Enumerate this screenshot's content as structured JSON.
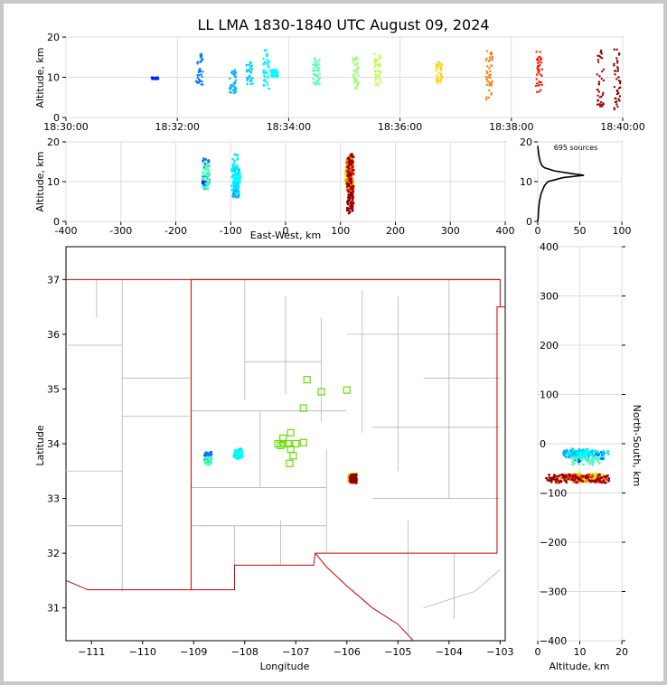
{
  "title": "LL LMA 1830-1840 UTC August 09, 2024",
  "colors": {
    "panel_border": "#000000",
    "grid": "#dddddd",
    "state_border": "#cc0000",
    "county_border": "#b4b4b4",
    "station": "#66dd00",
    "histogram": "#000000"
  },
  "time_panel": {
    "ylabel": "Altitude, km",
    "ylim": [
      0,
      20
    ],
    "yticks": [
      "0",
      "10",
      "20"
    ],
    "xticks": [
      "18:30:00",
      "18:32:00",
      "18:34:00",
      "18:36:00",
      "18:38:00",
      "18:40:00"
    ],
    "xrange_min": [
      0,
      10
    ]
  },
  "ew_panel": {
    "ylabel": "Altitude, km",
    "xlabel": "East-West, km",
    "xlim": [
      -400,
      400
    ],
    "ylim": [
      0,
      20
    ],
    "xticks": [
      "-400",
      "-300",
      "-200",
      "-100",
      "0",
      "100",
      "200",
      "300",
      "400"
    ],
    "yticks": [
      "0",
      "10",
      "20"
    ]
  },
  "hist_panel": {
    "label": "695 sources",
    "xlim": [
      0,
      100
    ],
    "ylim": [
      0,
      20
    ],
    "xticks": [
      "0",
      "50",
      "100"
    ],
    "yticks": [
      "0",
      "10",
      "20"
    ],
    "curve": [
      [
        0,
        0
      ],
      [
        0.5,
        1
      ],
      [
        1,
        3
      ],
      [
        2,
        5
      ],
      [
        3,
        6
      ],
      [
        4,
        7
      ],
      [
        6,
        8
      ],
      [
        8,
        9
      ],
      [
        12,
        10
      ],
      [
        30,
        11
      ],
      [
        55,
        11.6
      ],
      [
        35,
        12.2
      ],
      [
        20,
        12.7
      ],
      [
        8,
        13.5
      ],
      [
        5,
        14
      ],
      [
        3,
        15
      ],
      [
        2,
        16
      ],
      [
        1,
        17
      ],
      [
        0.5,
        18
      ],
      [
        0,
        19
      ]
    ]
  },
  "map_panel": {
    "xlabel": "Longitude",
    "ylabel": "Latitude",
    "xlim": [
      -111.5,
      -102.9
    ],
    "ylim": [
      30.4,
      37.6
    ],
    "xticks": [
      "−111",
      "−110",
      "−109",
      "−108",
      "−107",
      "−106",
      "−105",
      "−104",
      "−103"
    ],
    "yticks": [
      "31",
      "32",
      "33",
      "34",
      "35",
      "36",
      "37"
    ],
    "stations": [
      [
        -107.35,
        34.0
      ],
      [
        -107.25,
        34.0
      ],
      [
        -107.15,
        34.0
      ],
      [
        -107.0,
        34.0
      ],
      [
        -106.85,
        34.02
      ],
      [
        -107.1,
        34.2
      ],
      [
        -107.1,
        33.9
      ],
      [
        -107.05,
        33.78
      ],
      [
        -107.12,
        33.64
      ],
      [
        -107.25,
        34.1
      ],
      [
        -107.3,
        33.97
      ],
      [
        -106.85,
        34.65
      ],
      [
        -106.78,
        35.17
      ],
      [
        -106.5,
        34.95
      ],
      [
        -106.0,
        34.98
      ]
    ]
  },
  "ns_panel": {
    "xlabel": "Altitude, km",
    "ylabel": "North-South, km",
    "xlim": [
      0,
      20
    ],
    "ylim": [
      -400,
      400
    ],
    "xticks": [
      "0",
      "10",
      "20"
    ],
    "yticks": [
      "400",
      "300",
      "200",
      "100",
      "0",
      "−100",
      "−200",
      "−300",
      "−400"
    ]
  },
  "chart_data": {
    "type": "scatter",
    "title": "LL LMA 1830-1840 UTC August 09, 2024",
    "total_sources": 695,
    "color_scale": "time 18:30 (blue) to 18:40 (dark red)",
    "clusters": [
      {
        "time_min": 1.6,
        "x_km": -145,
        "y_km": -30,
        "alt": [
          9.5,
          10
        ]
      },
      {
        "time_min": 2.4,
        "x_km": -145,
        "y_km": -25,
        "alt": [
          8,
          16
        ]
      },
      {
        "time_min": 3.0,
        "x_km": -90,
        "y_km": -20,
        "alt": [
          6,
          12
        ]
      },
      {
        "time_min": 3.3,
        "x_km": -90,
        "y_km": -18,
        "alt": [
          8,
          14
        ]
      },
      {
        "time_min": 3.6,
        "x_km": -92,
        "y_km": -22,
        "alt": [
          7,
          17
        ]
      },
      {
        "time_min": 3.75,
        "x_km": -88,
        "y_km": -20,
        "alt": [
          10,
          12
        ]
      },
      {
        "time_min": 4.5,
        "x_km": -145,
        "y_km": -35,
        "alt": [
          8,
          15
        ]
      },
      {
        "time_min": 5.2,
        "x_km": 115,
        "y_km": -70,
        "alt": [
          7,
          15
        ]
      },
      {
        "time_min": 5.6,
        "x_km": 118,
        "y_km": -68,
        "alt": [
          8,
          16
        ]
      },
      {
        "time_min": 6.7,
        "x_km": 115,
        "y_km": -70,
        "alt": [
          8,
          14
        ]
      },
      {
        "time_min": 7.6,
        "x_km": 117,
        "y_km": -72,
        "alt": [
          4,
          17
        ]
      },
      {
        "time_min": 8.5,
        "x_km": 118,
        "y_km": -70,
        "alt": [
          6,
          17
        ]
      },
      {
        "time_min": 9.6,
        "x_km": 118,
        "y_km": -72,
        "alt": [
          2,
          17
        ]
      },
      {
        "time_min": 9.9,
        "x_km": 118,
        "y_km": -70,
        "alt": [
          2,
          17
        ]
      }
    ]
  }
}
